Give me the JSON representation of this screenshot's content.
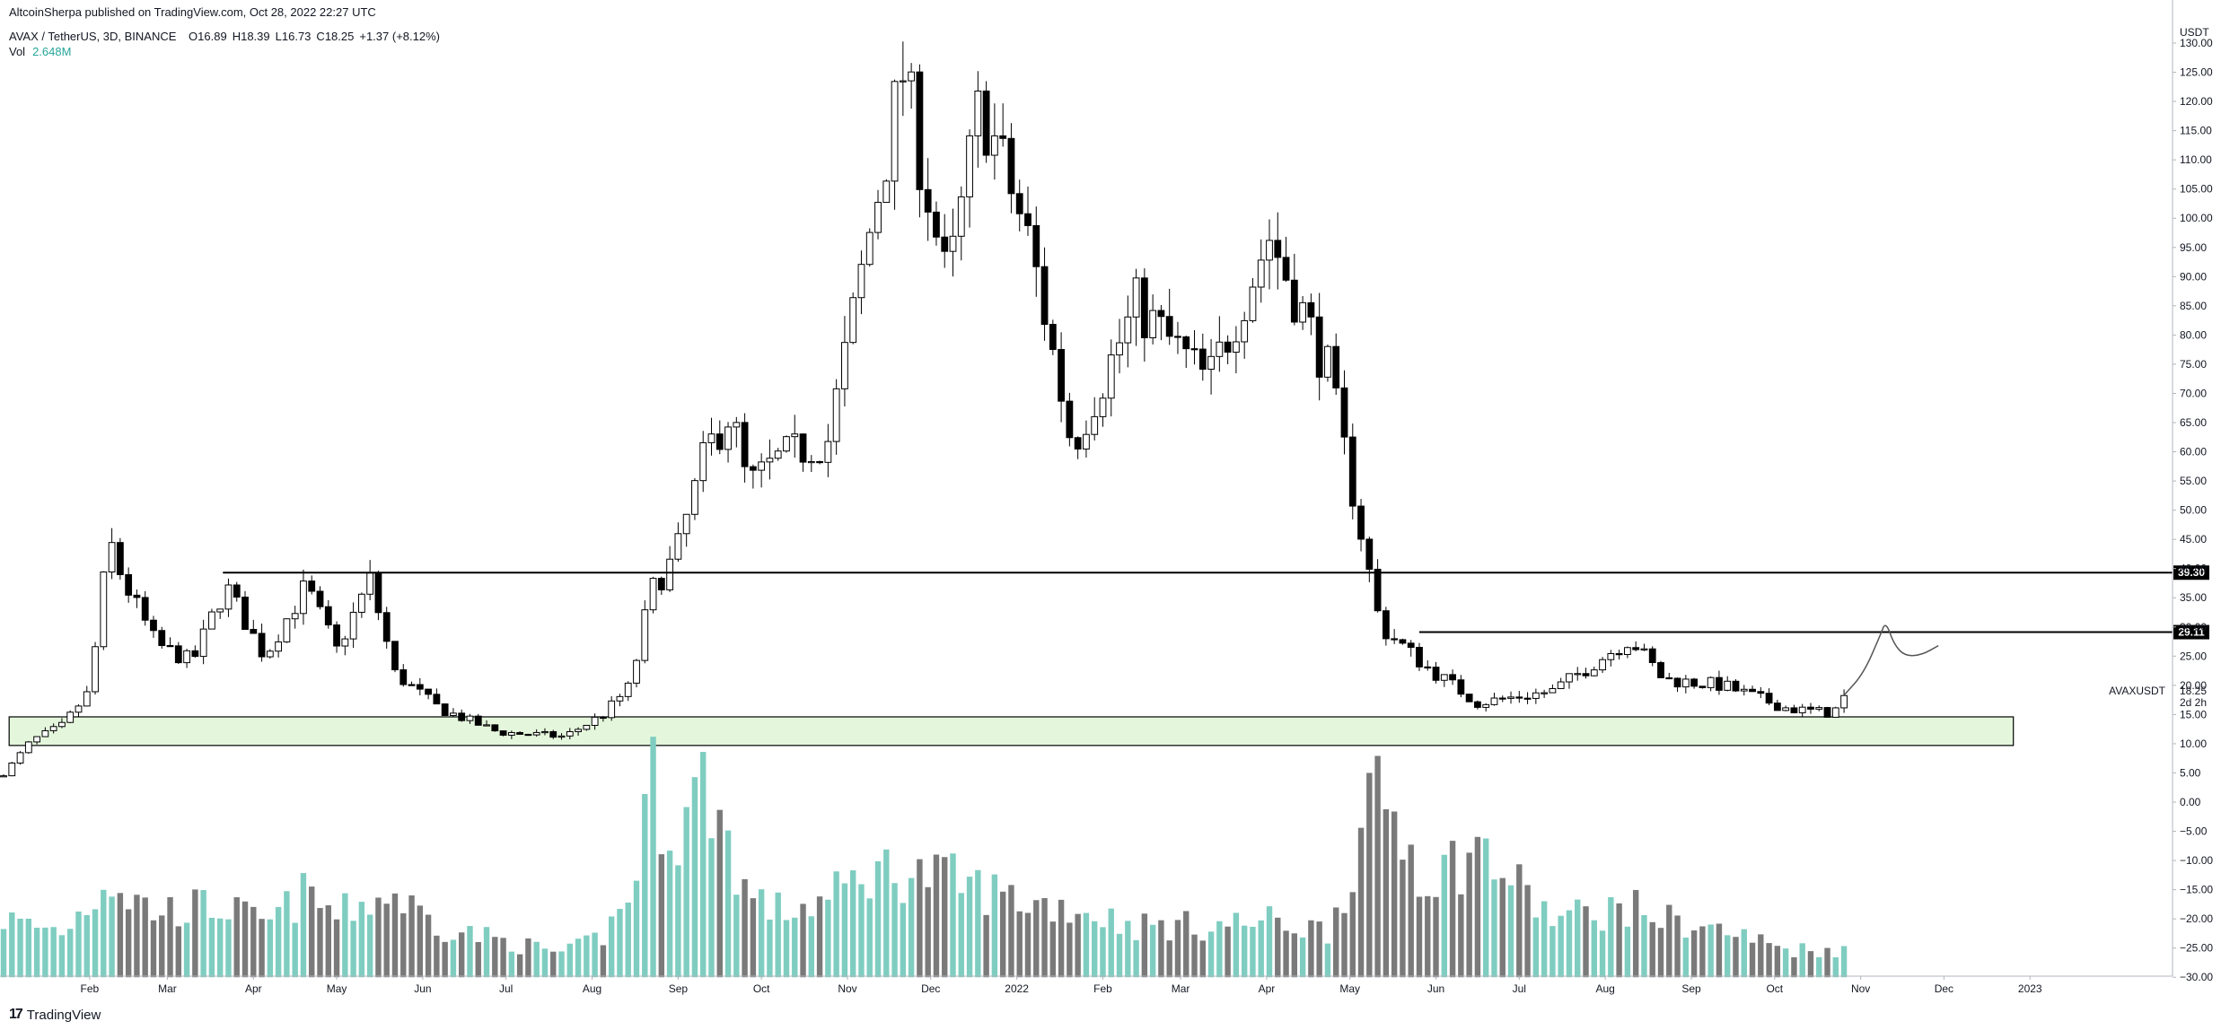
{
  "header": {
    "publish_line": "AltcoinSherpa published on TradingView.com, Oct 28, 2022 22:27 UTC",
    "symbol": "AVAX / TetherUS, 3D, BINANCE",
    "ohlc": [
      {
        "label": "O",
        "value": "16.89"
      },
      {
        "label": "H",
        "value": "18.39"
      },
      {
        "label": "L",
        "value": "16.73"
      },
      {
        "label": "C",
        "value": "18.25"
      },
      {
        "label": "",
        "value": "+1.37 (+8.12%)"
      }
    ],
    "vol_label": "Vol",
    "vol_value": "2.648M"
  },
  "footer": {
    "logo_text": "TradingView",
    "logo_mark": "17"
  },
  "chart_data": {
    "type": "candlestick",
    "symbol": "AVAXUSDT",
    "quote_currency": "USDT",
    "interval": "3D",
    "exchange": "BINANCE",
    "price_axis": {
      "label": "USDT",
      "ticks": [
        "130.00",
        "125.00",
        "120.00",
        "115.00",
        "110.00",
        "105.00",
        "100.00",
        "95.00",
        "90.00",
        "85.00",
        "80.00",
        "75.00",
        "70.00",
        "65.00",
        "60.00",
        "55.00",
        "50.00",
        "45.00",
        "40.00",
        "35.00",
        "30.00",
        "25.00",
        "20.00",
        "15.00",
        "10.00",
        "5.00",
        "0.00",
        "−5.00",
        "−10.00",
        "−15.00",
        "−20.00",
        "−25.00",
        "−30.00"
      ],
      "range": [
        -30,
        130
      ]
    },
    "time_axis": {
      "labels": [
        "Feb",
        "Mar",
        "Apr",
        "May",
        "Jun",
        "Jul",
        "Aug",
        "Sep",
        "Oct",
        "Nov",
        "Dec",
        "2022",
        "Feb",
        "Mar",
        "Apr",
        "May",
        "Jun",
        "Jul",
        "Aug",
        "Sep",
        "Oct",
        "Nov",
        "Dec",
        "2023"
      ],
      "range": [
        "2021-01-01",
        "2023-01-20"
      ]
    },
    "last_price": {
      "value": "18.25",
      "countdown": "2d 2h",
      "symbol_label": "AVAXUSDT"
    },
    "horizontal_levels": [
      {
        "value": 39.3,
        "label": "39.30",
        "from": "2021-03-21",
        "to": "2023-01-20"
      },
      {
        "value": 29.11,
        "label": "29.11",
        "from": "2022-05-26",
        "to": "2023-01-20"
      }
    ],
    "support_zone": {
      "low": 9.7,
      "high": 14.6,
      "from": "2021-01-03",
      "to": "2022-12-26",
      "color": "#e4f7dc"
    },
    "projection_path": {
      "points": [
        [
          "2022-10-26",
          18.3
        ],
        [
          "2022-11-02",
          22
        ],
        [
          "2022-11-08",
          28.5
        ],
        [
          "2022-11-10",
          31
        ],
        [
          "2022-11-13",
          27
        ],
        [
          "2022-11-17",
          25
        ],
        [
          "2022-11-23",
          25.2
        ],
        [
          "2022-11-29",
          26.8
        ]
      ]
    },
    "volume_shown_on_price_scale": true,
    "colors": {
      "up_body": "#ffffff",
      "down_body": "#000000",
      "wick": "#000000",
      "volume_up": "#7fcdc1",
      "volume_down": "#7a7a7a",
      "level_label_bg": "#000000"
    },
    "anchors": [
      {
        "date": "2021-01-01",
        "close": 4.8,
        "vol": 0.25
      },
      {
        "date": "2021-01-11",
        "close": 10.5,
        "vol": 0.22
      },
      {
        "date": "2021-01-22",
        "close": 13,
        "vol": 0.2
      },
      {
        "date": "2021-02-01",
        "close": 19,
        "vol": 0.32
      },
      {
        "date": "2021-02-08",
        "close": 45,
        "vol": 0.45
      },
      {
        "date": "2021-02-13",
        "close": 38,
        "vol": 0.36
      },
      {
        "date": "2021-02-25",
        "close": 27,
        "vol": 0.28
      },
      {
        "date": "2021-03-10",
        "close": 24,
        "vol": 0.3
      },
      {
        "date": "2021-03-22",
        "close": 37,
        "vol": 0.3
      },
      {
        "date": "2021-04-05",
        "close": 25,
        "vol": 0.22
      },
      {
        "date": "2021-04-20",
        "close": 37,
        "vol": 0.36
      },
      {
        "date": "2021-05-01",
        "close": 26,
        "vol": 0.26
      },
      {
        "date": "2021-05-13",
        "close": 38,
        "vol": 0.33
      },
      {
        "date": "2021-05-22",
        "close": 22,
        "vol": 0.35
      },
      {
        "date": "2021-06-07",
        "close": 16,
        "vol": 0.22
      },
      {
        "date": "2021-06-28",
        "close": 12,
        "vol": 0.16
      },
      {
        "date": "2021-07-22",
        "close": 11.2,
        "vol": 0.1
      },
      {
        "date": "2021-08-05",
        "close": 15,
        "vol": 0.18
      },
      {
        "date": "2021-08-15",
        "close": 20,
        "vol": 0.35
      },
      {
        "date": "2021-08-22",
        "close": 36,
        "vol": 0.85
      },
      {
        "date": "2021-08-31",
        "close": 42,
        "vol": 0.6
      },
      {
        "date": "2021-09-11",
        "close": 60,
        "vol": 0.85
      },
      {
        "date": "2021-09-20",
        "close": 67,
        "vol": 0.55
      },
      {
        "date": "2021-09-26",
        "close": 54,
        "vol": 0.35
      },
      {
        "date": "2021-10-08",
        "close": 59,
        "vol": 0.28
      },
      {
        "date": "2021-10-25",
        "close": 62,
        "vol": 0.33
      },
      {
        "date": "2021-11-10",
        "close": 100,
        "vol": 0.46
      },
      {
        "date": "2021-11-21",
        "close": 125,
        "vol": 0.45
      },
      {
        "date": "2021-12-07",
        "close": 88,
        "vol": 0.42
      },
      {
        "date": "2021-12-19",
        "close": 120,
        "vol": 0.38
      },
      {
        "date": "2022-01-06",
        "close": 95,
        "vol": 0.32
      },
      {
        "date": "2022-01-21",
        "close": 61,
        "vol": 0.3
      },
      {
        "date": "2022-02-13",
        "close": 85,
        "vol": 0.22
      },
      {
        "date": "2022-03-11",
        "close": 72,
        "vol": 0.22
      },
      {
        "date": "2022-04-02",
        "close": 97,
        "vol": 0.24
      },
      {
        "date": "2022-04-23",
        "close": 74,
        "vol": 0.2
      },
      {
        "date": "2022-05-12",
        "close": 30,
        "vol": 0.8
      },
      {
        "date": "2022-05-29",
        "close": 23,
        "vol": 0.42
      },
      {
        "date": "2022-06-16",
        "close": 17,
        "vol": 0.55
      },
      {
        "date": "2022-07-13",
        "close": 19,
        "vol": 0.25
      },
      {
        "date": "2022-08-10",
        "close": 28,
        "vol": 0.3
      },
      {
        "date": "2022-08-22",
        "close": 21,
        "vol": 0.25
      },
      {
        "date": "2022-09-12",
        "close": 20,
        "vol": 0.2
      },
      {
        "date": "2022-10-06",
        "close": 16,
        "vol": 0.12
      },
      {
        "date": "2022-10-22",
        "close": 15.2,
        "vol": 0.12
      },
      {
        "date": "2022-10-27",
        "close": 18.25,
        "vol": 0.11
      }
    ]
  }
}
